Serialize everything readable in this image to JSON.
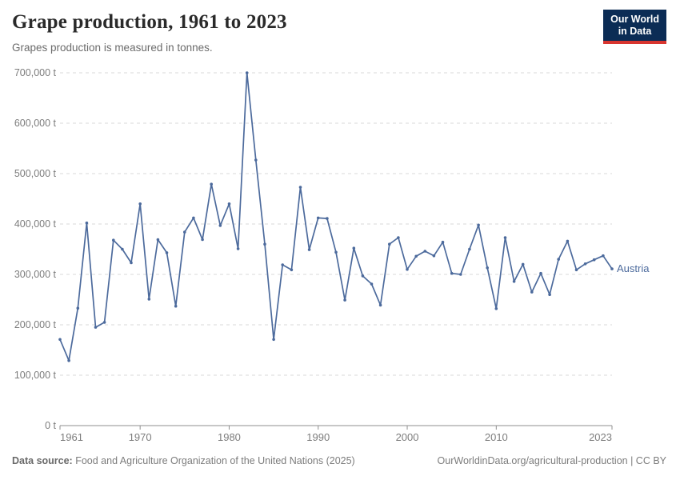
{
  "header": {
    "title": "Grape production, 1961 to 2023",
    "subtitle": "Grapes production is measured in tonnes."
  },
  "logo": {
    "line1": "Our World",
    "line2": "in Data",
    "bg_color": "#0b2c55",
    "stripe_color": "#d8352f"
  },
  "chart_data": {
    "type": "line",
    "title": "Grape production, 1961 to 2023",
    "unit": "tonnes",
    "grid": "horizontal-dashed",
    "legend_position": "end-of-line",
    "xlim": [
      1961,
      2023
    ],
    "ylim": [
      0,
      700000
    ],
    "x": [
      1961,
      1962,
      1963,
      1964,
      1965,
      1966,
      1967,
      1968,
      1969,
      1970,
      1971,
      1972,
      1973,
      1974,
      1975,
      1976,
      1977,
      1978,
      1979,
      1980,
      1981,
      1982,
      1983,
      1984,
      1985,
      1986,
      1987,
      1988,
      1989,
      1990,
      1991,
      1992,
      1993,
      1994,
      1995,
      1996,
      1997,
      1998,
      1999,
      2000,
      2001,
      2002,
      2003,
      2004,
      2005,
      2006,
      2007,
      2008,
      2009,
      2010,
      2011,
      2012,
      2013,
      2014,
      2015,
      2016,
      2017,
      2018,
      2019,
      2020,
      2021,
      2022,
      2023
    ],
    "series": [
      {
        "name": "Austria",
        "color": "#4C6A9C",
        "values": [
          171000,
          129000,
          233000,
          402000,
          195000,
          205000,
          368000,
          350000,
          323000,
          440000,
          251000,
          369000,
          343000,
          237000,
          384000,
          412000,
          369000,
          479000,
          397000,
          440000,
          351000,
          700000,
          527000,
          360000,
          171000,
          319000,
          309000,
          473000,
          349000,
          412000,
          411000,
          344000,
          249000,
          352000,
          297000,
          281000,
          239000,
          360000,
          373000,
          310000,
          336000,
          346000,
          337000,
          364000,
          302000,
          300000,
          350000,
          398000,
          313000,
          232000,
          373000,
          286000,
          320000,
          265000,
          302000,
          260000,
          330000,
          366000,
          309000,
          321000,
          329000,
          337000,
          311000
        ]
      }
    ],
    "yticks": [
      {
        "value": 0,
        "label": "0 t"
      },
      {
        "value": 100000,
        "label": "100,000 t"
      },
      {
        "value": 200000,
        "label": "200,000 t"
      },
      {
        "value": 300000,
        "label": "300,000 t"
      },
      {
        "value": 400000,
        "label": "400,000 t"
      },
      {
        "value": 500000,
        "label": "500,000 t"
      },
      {
        "value": 600000,
        "label": "600,000 t"
      },
      {
        "value": 700000,
        "label": "700,000 t"
      }
    ],
    "xticks": [
      {
        "value": 1961,
        "label": "1961"
      },
      {
        "value": 1970,
        "label": "1970"
      },
      {
        "value": 1980,
        "label": "1980"
      },
      {
        "value": 1990,
        "label": "1990"
      },
      {
        "value": 2000,
        "label": "2000"
      },
      {
        "value": 2010,
        "label": "2010"
      },
      {
        "value": 2023,
        "label": "2023"
      }
    ]
  },
  "colors": {
    "line": "#4C6A9C",
    "gridline": "#dadada",
    "axis": "#8f8f8f",
    "tick_label": "#7d7d7d",
    "title_text": "#2a2a2a",
    "subtitle_text": "#6b6b6b"
  },
  "footer": {
    "data_source_label": "Data source:",
    "data_source_text": " Food and Agriculture Organization of the United Nations (2025)",
    "attribution": "OurWorldinData.org/agricultural-production | CC BY"
  }
}
